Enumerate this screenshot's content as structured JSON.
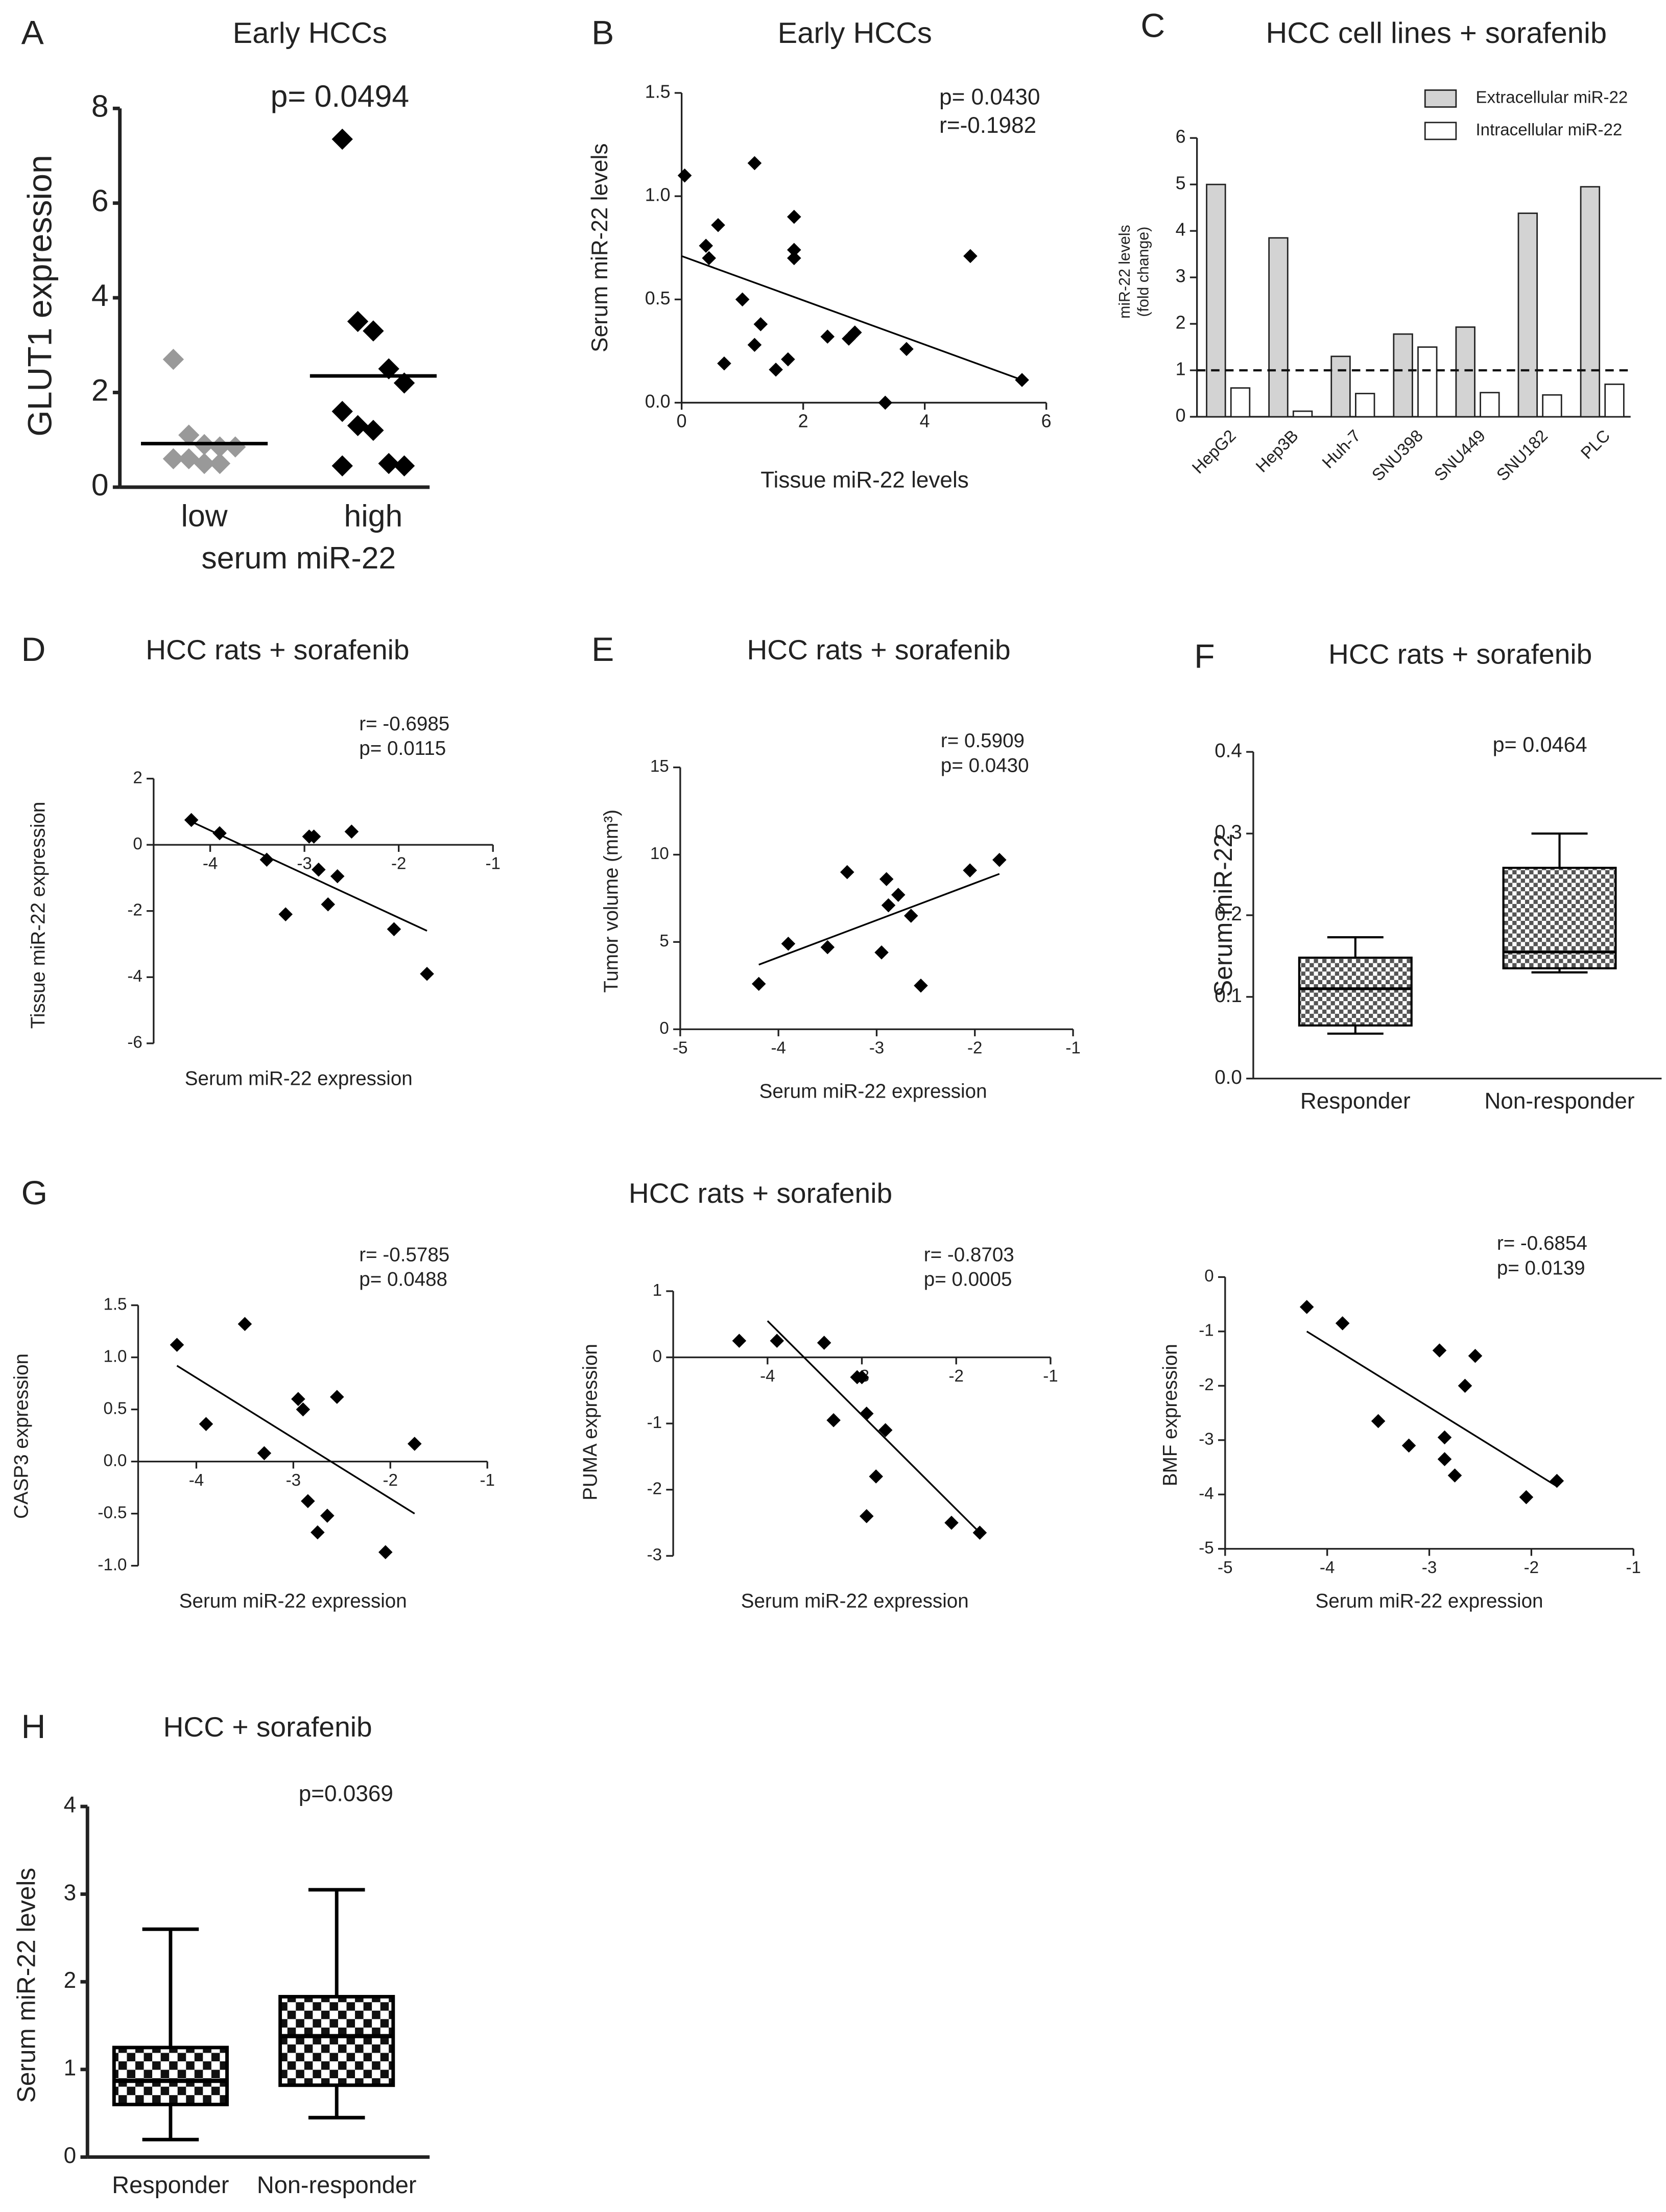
{
  "chart_data": [
    {
      "type": "strip",
      "panel": "A",
      "title": "Early HCCs",
      "annotations": [
        "p= 0.0494"
      ],
      "ylabel": "GLUT1 expression",
      "xlabel": "serum miR-22",
      "categories": [
        "low",
        "high"
      ],
      "values": [
        [
          2.7,
          1.1,
          0.9,
          0.85,
          0.85,
          0.6,
          0.6,
          0.5,
          0.5
        ],
        [
          7.35,
          3.5,
          3.3,
          2.5,
          2.2,
          1.6,
          1.3,
          1.2,
          0.5,
          0.45,
          0.45
        ]
      ],
      "means": [
        0.92,
        2.35
      ],
      "colors": [
        "#999999",
        "#000000"
      ],
      "ylim": [
        0,
        8
      ],
      "yticks": [
        0,
        2,
        4,
        6,
        8
      ]
    },
    {
      "type": "scatter",
      "panel": "B",
      "title": "Early HCCs",
      "annotations": [
        "p= 0.0430",
        "r=-0.1982"
      ],
      "ylabel": "Serum miR-22 levels",
      "xlabel": "Tissue miR-22 levels",
      "x": [
        0.05,
        0.4,
        0.45,
        0.6,
        0.7,
        1.0,
        1.2,
        1.2,
        1.3,
        1.55,
        1.75,
        1.85,
        1.85,
        1.85,
        2.4,
        2.75,
        2.85,
        3.35,
        3.7,
        4.75,
        5.6
      ],
      "y": [
        1.1,
        0.76,
        0.7,
        0.86,
        0.19,
        0.5,
        1.16,
        0.28,
        0.38,
        0.16,
        0.21,
        0.9,
        0.74,
        0.7,
        0.32,
        0.31,
        0.34,
        0.0,
        0.26,
        0.71,
        0.11
      ],
      "fit": {
        "x": [
          0,
          5.6
        ],
        "y": [
          0.71,
          0.11
        ]
      },
      "color": "#000000",
      "xlim": [
        0,
        6
      ],
      "xticks": [
        0,
        2,
        4,
        6
      ],
      "ylim": [
        0,
        1.5
      ],
      "yticks": [
        {
          "value": 0,
          "label": "0.0"
        },
        {
          "value": 0.5,
          "label": "0.5"
        },
        {
          "value": 1,
          "label": "1.0"
        },
        {
          "value": 1.5,
          "label": "1.5"
        }
      ]
    },
    {
      "type": "bar",
      "panel": "C",
      "title": "HCC cell lines + sorafenib",
      "ylabel": [
        "miR-22 levels",
        "(fold change)"
      ],
      "categories": [
        "HepG2",
        "Hep3B",
        "Huh-7",
        "SNU398",
        "SNU449",
        "SNU182",
        "PLC"
      ],
      "series": [
        {
          "name": "Extracellular miR-22",
          "color": "#d3d3d3",
          "values": [
            5.0,
            3.85,
            1.3,
            1.78,
            1.93,
            4.38,
            4.95
          ]
        },
        {
          "name": "Intracellular miR-22",
          "color": "#ffffff",
          "values": [
            0.62,
            0.12,
            0.5,
            1.5,
            0.52,
            0.47,
            0.7
          ]
        }
      ],
      "refline": 1,
      "ylim": [
        0,
        6
      ],
      "yticks": [
        0,
        1,
        2,
        3,
        4,
        5,
        6
      ]
    },
    {
      "type": "scatter",
      "panel": "D",
      "title": "HCC rats + sorafenib",
      "annotations": [
        "r= -0.6985",
        "p=  0.0115"
      ],
      "ylabel": "Tissue miR-22 expression",
      "xlabel": "Serum miR-22 expression",
      "x": [
        -4.2,
        -3.9,
        -3.4,
        -3.2,
        -2.95,
        -2.9,
        -2.85,
        -2.75,
        -2.65,
        -2.5,
        -2.05,
        -1.7
      ],
      "y": [
        0.75,
        0.35,
        -0.45,
        -2.1,
        0.25,
        0.25,
        -0.75,
        -1.8,
        -0.95,
        0.4,
        -2.55,
        -3.9
      ],
      "fit": {
        "x": [
          -4.2,
          -1.7
        ],
        "y": [
          0.7,
          -2.6
        ]
      },
      "color": "#000000",
      "x_axis_at": 0,
      "xlim": [
        -4.6,
        -1
      ],
      "xticks": [
        -4,
        -3,
        -2,
        -1
      ],
      "ylim": [
        -6,
        2
      ],
      "yticks": [
        -6,
        -4,
        -2,
        0,
        2
      ]
    },
    {
      "type": "scatter",
      "panel": "E",
      "title": "HCC rats + sorafenib",
      "annotations": [
        "r=  0.5909",
        "p=  0.0430"
      ],
      "ylabel": "Tumor volume (mm³)",
      "xlabel": "Serum miR-22 expression",
      "x": [
        -4.2,
        -3.9,
        -3.5,
        -3.3,
        -2.95,
        -2.9,
        -2.88,
        -2.78,
        -2.65,
        -2.55,
        -2.05,
        -1.75
      ],
      "y": [
        2.6,
        4.9,
        4.7,
        9.0,
        4.4,
        8.6,
        7.1,
        7.7,
        6.5,
        2.5,
        9.1,
        9.7
      ],
      "fit": {
        "x": [
          -4.2,
          -1.75
        ],
        "y": [
          3.7,
          8.9
        ]
      },
      "color": "#000000",
      "xlim": [
        -5,
        -1
      ],
      "xticks": [
        -5,
        -4,
        -3,
        -2,
        -1
      ],
      "ylim": [
        0,
        15
      ],
      "yticks": [
        0,
        5,
        10,
        15
      ]
    },
    {
      "type": "box",
      "panel": "F",
      "title": "HCC rats + sorafenib",
      "annotations": [
        "p= 0.0464"
      ],
      "ylabel": "Serum miR-22",
      "categories": [
        "Responder",
        "Non-responder"
      ],
      "boxes": [
        {
          "min": 0.055,
          "q1": 0.065,
          "median": 0.11,
          "q3": 0.148,
          "max": 0.173
        },
        {
          "min": 0.13,
          "q1": 0.135,
          "median": 0.155,
          "q3": 0.258,
          "max": 0.3
        }
      ],
      "ylim": [
        0,
        0.4
      ],
      "yticks": [
        {
          "value": 0,
          "label": "0.0"
        },
        0.1,
        0.2,
        0.3,
        0.4
      ]
    },
    {
      "type": "scatter",
      "panel": "G",
      "annotations": [
        "r= -0.5785",
        "p=  0.0488"
      ],
      "ylabel": "CASP3 expression",
      "xlabel": "Serum miR-22 expression",
      "x": [
        -4.2,
        -3.9,
        -3.5,
        -3.3,
        -2.95,
        -2.9,
        -2.85,
        -2.75,
        -2.65,
        -2.55,
        -2.05,
        -1.75
      ],
      "y": [
        1.12,
        0.36,
        1.32,
        0.08,
        0.6,
        0.5,
        -0.38,
        -0.68,
        -0.52,
        0.62,
        -0.87,
        0.17
      ],
      "fit": {
        "x": [
          -4.2,
          -1.75
        ],
        "y": [
          0.92,
          -0.5
        ]
      },
      "color": "#000000",
      "x_axis_at": 0,
      "xlim": [
        -4.6,
        -1
      ],
      "xticks": [
        -4,
        -3,
        -2,
        -1
      ],
      "ylim": [
        -1,
        1.5
      ],
      "yticks": [
        {
          "value": -1,
          "label": "-1.0"
        },
        {
          "value": -0.5,
          "label": "-0.5"
        },
        {
          "value": 0,
          "label": "0.0"
        },
        0.5,
        {
          "value": 1,
          "label": "1.0"
        },
        1.5
      ]
    },
    {
      "type": "scatter",
      "title": "HCC rats + sorafenib",
      "annotations": [
        "r= -0.8703",
        "p=  0.0005"
      ],
      "ylabel": "PUMA expression",
      "xlabel": "Serum miR-22 expression",
      "x": [
        -4.3,
        -3.9,
        -3.4,
        -3.3,
        -3.05,
        -3.0,
        -2.95,
        -2.95,
        -2.85,
        -2.75,
        -2.05,
        -1.75
      ],
      "y": [
        0.25,
        0.25,
        0.22,
        -0.95,
        -0.3,
        -0.3,
        -0.85,
        -2.4,
        -1.8,
        -1.1,
        -2.5,
        -2.65
      ],
      "fit": {
        "x": [
          -4.0,
          -1.75
        ],
        "y": [
          0.55,
          -2.65
        ]
      },
      "color": "#000000",
      "x_axis_at": 0,
      "xlim": [
        -5,
        -1
      ],
      "xticks": [
        -4,
        -3,
        -2,
        -1
      ],
      "ylim": [
        -3,
        1
      ],
      "yticks": [
        -3,
        -2,
        -1,
        0,
        1
      ]
    },
    {
      "type": "scatter",
      "annotations": [
        "r=  -0.6854",
        "p=  0.0139"
      ],
      "ylabel": "BMF expression",
      "xlabel": "Serum miR-22 expression",
      "x": [
        -4.2,
        -3.85,
        -3.5,
        -3.2,
        -2.9,
        -2.85,
        -2.85,
        -2.75,
        -2.65,
        -2.55,
        -2.05,
        -1.75
      ],
      "y": [
        -0.55,
        -0.85,
        -2.65,
        -3.1,
        -1.35,
        -2.95,
        -3.35,
        -3.65,
        -2.0,
        -1.45,
        -4.05,
        -3.75
      ],
      "fit": {
        "x": [
          -4.2,
          -1.75
        ],
        "y": [
          -1.0,
          -3.85
        ]
      },
      "color": "#000000",
      "xlim": [
        -5,
        -1
      ],
      "xticks": [
        -5,
        -4,
        -3,
        -2,
        -1
      ],
      "ylim": [
        -5,
        0
      ],
      "yticks": [
        -5,
        -4,
        -3,
        -2,
        -1,
        0
      ]
    },
    {
      "type": "box",
      "panel": "H",
      "title": "HCC + sorafenib",
      "annotations": [
        "p=0.0369"
      ],
      "ylabel": "Serum miR-22 levels",
      "categories": [
        "Responder",
        "Non-responder"
      ],
      "boxes": [
        {
          "min": 0.2,
          "q1": 0.6,
          "median": 0.87,
          "q3": 1.25,
          "max": 2.6
        },
        {
          "min": 0.45,
          "q1": 0.82,
          "median": 1.38,
          "q3": 1.83,
          "max": 3.05
        }
      ],
      "ylim": [
        0,
        4
      ],
      "yticks": [
        0,
        1,
        2,
        3,
        4
      ]
    }
  ]
}
